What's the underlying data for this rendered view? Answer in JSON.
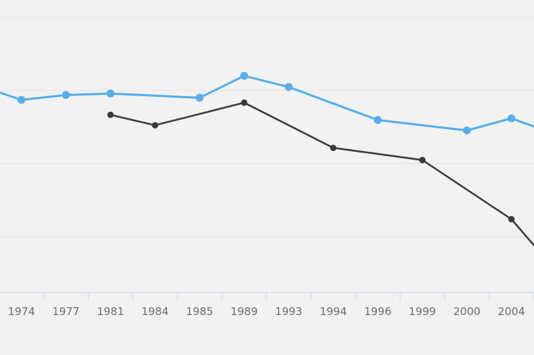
{
  "chart_data": {
    "type": "line",
    "categories": [
      "1974",
      "1977",
      "1981",
      "1984",
      "1985",
      "1989",
      "1993",
      "1994",
      "1996",
      "1999",
      "2000",
      "2004"
    ],
    "series": [
      {
        "color": "#55aee8",
        "values": [
          37.3,
          38.7,
          39.1,
          null,
          37.9,
          44.2,
          41.0,
          null,
          31.5,
          null,
          28.5,
          32.0
        ]
      },
      {
        "color": "#3a3a3a",
        "values": [
          null,
          null,
          33.0,
          30.0,
          null,
          36.5,
          null,
          23.5,
          null,
          20.0,
          null,
          3.0
        ]
      }
    ],
    "leading_values": [
      {
        "series": 0,
        "value": 39.5
      }
    ],
    "trailing_values": [
      {
        "series": 0,
        "value": 29.5
      },
      {
        "series": 1,
        "value": -5.0
      }
    ],
    "ylim": [
      -18,
      66
    ],
    "grid": true,
    "gridline_values": [
      -2,
      19,
      40,
      61
    ]
  }
}
